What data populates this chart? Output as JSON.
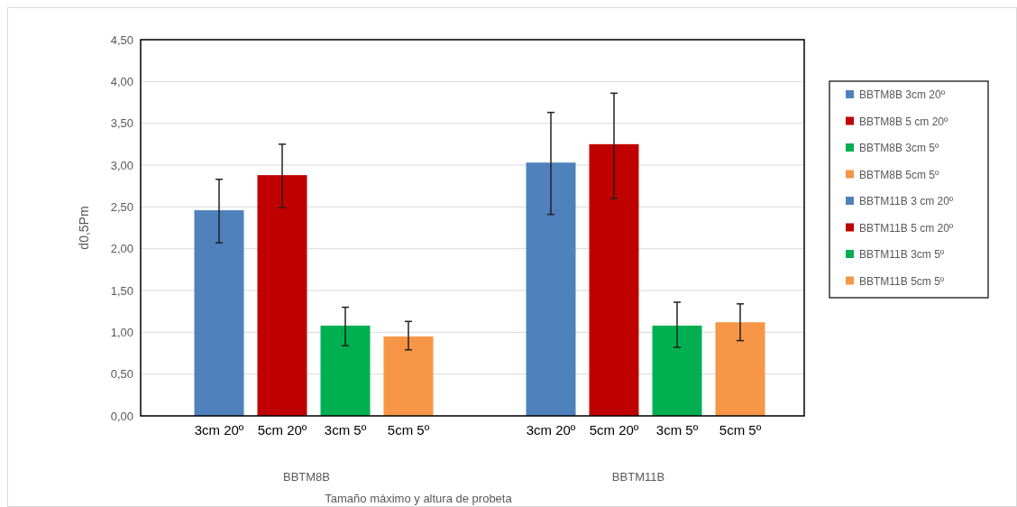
{
  "chart_data": {
    "type": "bar",
    "ylabel": "d0,5Pm",
    "xlabel": "Tamaño máximo y altura de probeta",
    "categories": [
      "3cm 20º",
      "5cm 20º",
      "3cm 5º",
      "5cm 5º",
      "3cm 20º",
      "5cm 20º",
      "3cm 5º",
      "5cm 5º"
    ],
    "annotations": [
      "BBTM8B",
      "BBTM11B"
    ],
    "series": [
      {
        "name": "BBTM8B 3cm 20º",
        "color": "#4f81bd",
        "values": [
          2.46,
          null,
          null,
          null,
          null,
          null,
          null,
          null
        ],
        "errors": [
          [
            2.07,
            2.83
          ],
          null,
          null,
          null,
          null,
          null,
          null,
          null
        ]
      },
      {
        "name": "BBTM8B 5 cm 20º",
        "color": "#c00000",
        "values": [
          null,
          2.88,
          null,
          null,
          null,
          null,
          null,
          null
        ],
        "errors": [
          null,
          [
            2.49,
            3.25
          ],
          null,
          null,
          null,
          null,
          null,
          null
        ]
      },
      {
        "name": "BBTM8B 3cm 5º",
        "color": "#00b050",
        "values": [
          null,
          null,
          1.08,
          null,
          null,
          null,
          null,
          null
        ],
        "errors": [
          null,
          null,
          [
            0.84,
            1.3
          ],
          null,
          null,
          null,
          null,
          null
        ]
      },
      {
        "name": "BBTM8B 5cm 5º",
        "color": "#f79646",
        "values": [
          null,
          null,
          null,
          0.95,
          null,
          null,
          null,
          null
        ],
        "errors": [
          null,
          null,
          null,
          [
            0.79,
            1.13
          ],
          null,
          null,
          null,
          null
        ]
      },
      {
        "name": "BBTM11B 3 cm 20º",
        "color": "#4f81bd",
        "values": [
          null,
          null,
          null,
          null,
          3.03,
          null,
          null,
          null
        ],
        "errors": [
          null,
          null,
          null,
          null,
          [
            2.41,
            3.63
          ],
          null,
          null,
          null
        ]
      },
      {
        "name": "BBTM11B 5 cm 20º",
        "color": "#c00000",
        "values": [
          null,
          null,
          null,
          null,
          null,
          3.25,
          null,
          null
        ],
        "errors": [
          null,
          null,
          null,
          null,
          null,
          [
            2.6,
            3.86
          ],
          null,
          null
        ]
      },
      {
        "name": "BBTM11B 3cm 5º",
        "color": "#00b050",
        "values": [
          null,
          null,
          null,
          null,
          null,
          null,
          1.08,
          null
        ],
        "errors": [
          null,
          null,
          null,
          null,
          null,
          null,
          [
            0.82,
            1.36
          ],
          null
        ]
      },
      {
        "name": "BBTM11B 5cm 5º",
        "color": "#f79646",
        "values": [
          null,
          null,
          null,
          null,
          null,
          null,
          null,
          1.12
        ],
        "errors": [
          null,
          null,
          null,
          null,
          null,
          null,
          null,
          [
            0.9,
            1.34
          ]
        ]
      }
    ],
    "ylim": [
      0,
      4.5
    ],
    "yticks": [
      {
        "value": 0,
        "label": "0,00"
      },
      {
        "value": 0.5,
        "label": "0,50"
      },
      {
        "value": 1,
        "label": "1,00"
      },
      {
        "value": 1.5,
        "label": "1,50"
      },
      {
        "value": 2,
        "label": "2,00"
      },
      {
        "value": 2.5,
        "label": "2,50"
      },
      {
        "value": 3,
        "label": "3,00"
      },
      {
        "value": 3.5,
        "label": "3,50"
      },
      {
        "value": 4,
        "label": "4,00"
      },
      {
        "value": 4.5,
        "label": "4,50"
      }
    ],
    "grid": "y",
    "legend": "right"
  }
}
